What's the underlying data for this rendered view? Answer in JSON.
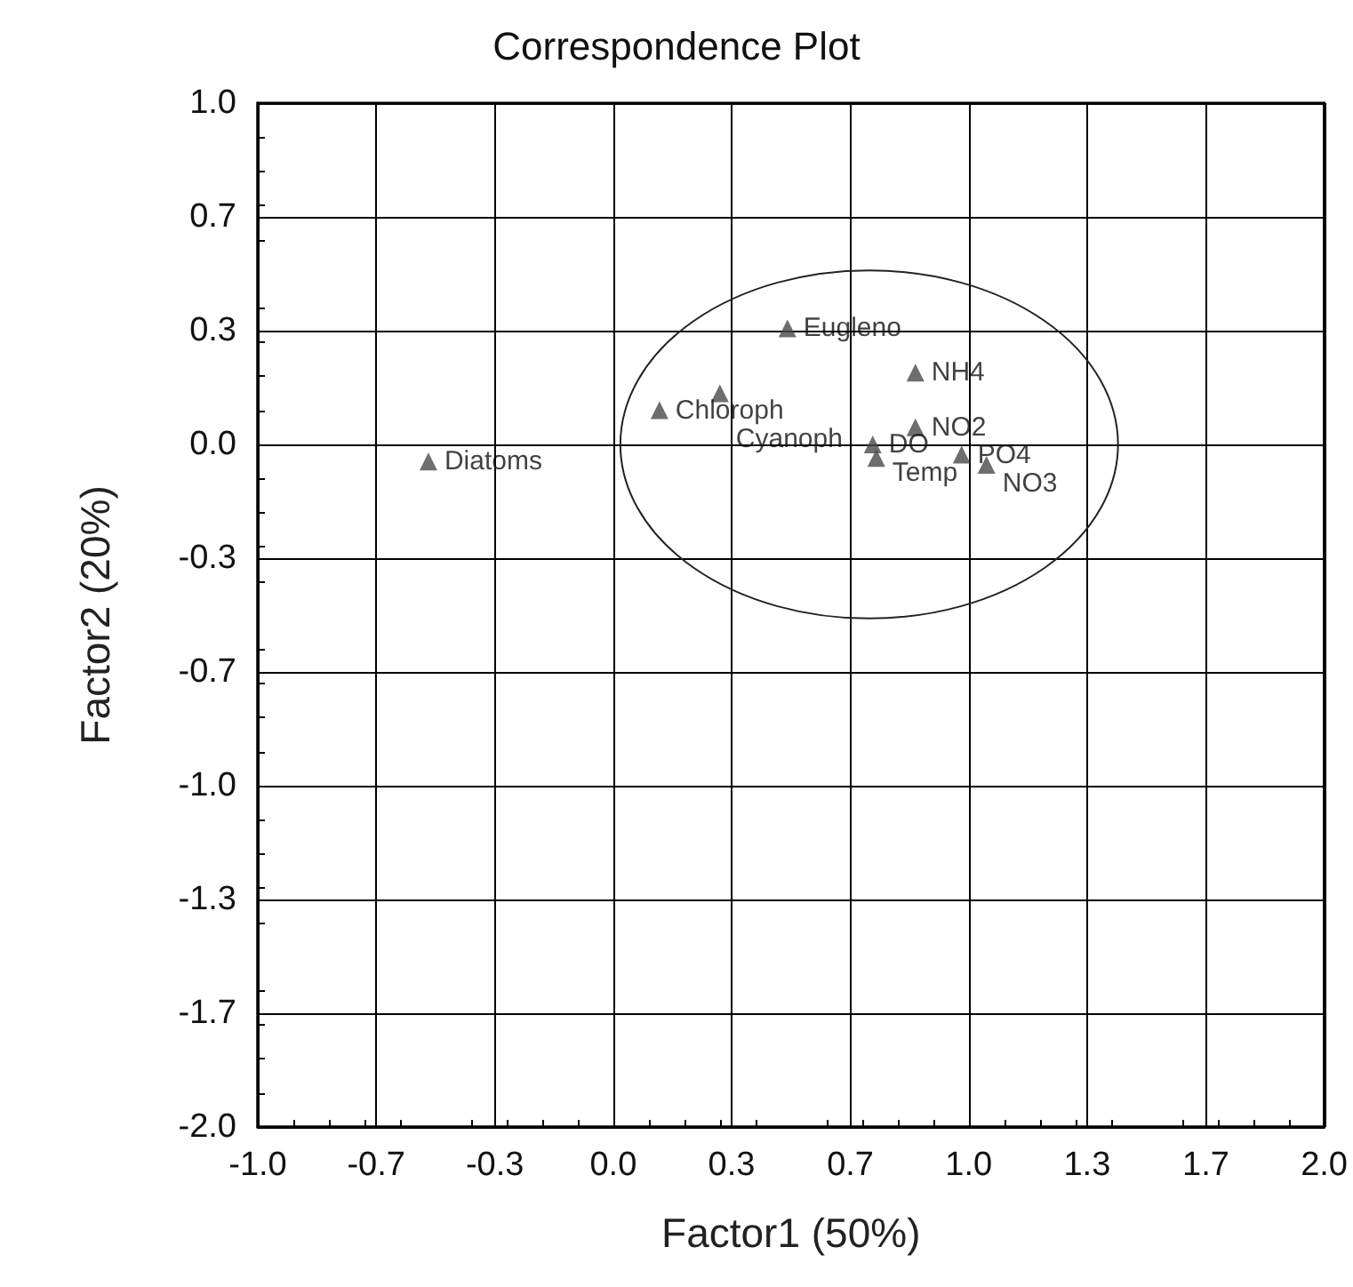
{
  "chart_data": {
    "type": "scatter",
    "title": "Correspondence Plot",
    "xlabel": "Factor1 (50%)",
    "ylabel": "Factor2 (20%)",
    "xlim": [
      -1.0,
      2.0
    ],
    "ylim": [
      -2.0,
      1.0
    ],
    "xticks": [
      {
        "value": -1,
        "label": "-1.0"
      },
      {
        "value": -0.667,
        "label": "-0.7"
      },
      {
        "value": -0.333,
        "label": "-0.3"
      },
      {
        "value": 0,
        "label": "0.0"
      },
      {
        "value": 0.333,
        "label": "0.3"
      },
      {
        "value": 0.667,
        "label": "0.7"
      },
      {
        "value": 1,
        "label": "1.0"
      },
      {
        "value": 1.333,
        "label": "1.3"
      },
      {
        "value": 1.667,
        "label": "1.7"
      },
      {
        "value": 2,
        "label": "2.0"
      }
    ],
    "yticks": [
      {
        "value": -2,
        "label": "-2.0"
      },
      {
        "value": -1.667,
        "label": "-1.7"
      },
      {
        "value": -1.333,
        "label": "-1.3"
      },
      {
        "value": -1,
        "label": "-1.0"
      },
      {
        "value": -0.667,
        "label": "-0.7"
      },
      {
        "value": -0.333,
        "label": "-0.3"
      },
      {
        "value": 0,
        "label": "0.0"
      },
      {
        "value": 0.333,
        "label": "0.3"
      },
      {
        "value": 0.667,
        "label": "0.7"
      },
      {
        "value": 1,
        "label": "1.0"
      }
    ],
    "grid": true,
    "legend": false,
    "marker": "triangle",
    "series": [
      {
        "name": "Diatoms",
        "color": "#4a4a4a",
        "x": [
          -0.52
        ],
        "values": [
          -0.05
        ]
      },
      {
        "name": "Chloroph",
        "color": "#4a4a4a",
        "x": [
          0.13
        ],
        "values": [
          0.1
        ]
      },
      {
        "name": "Cyanoph",
        "color": "#4a4a4a",
        "x": [
          0.3
        ],
        "values": [
          0.15
        ]
      },
      {
        "name": "Eugleno",
        "color": "#4a4a4a",
        "x": [
          0.49
        ],
        "values": [
          0.34
        ]
      },
      {
        "name": "NH4",
        "color": "#4a4a4a",
        "x": [
          0.85
        ],
        "values": [
          0.21
        ]
      },
      {
        "name": "NO2",
        "color": "#4a4a4a",
        "x": [
          0.85
        ],
        "values": [
          0.05
        ]
      },
      {
        "name": "DO",
        "color": "#4a4a4a",
        "x": [
          0.73
        ],
        "values": [
          0.0
        ]
      },
      {
        "name": "Temp",
        "color": "#4a4a4a",
        "x": [
          0.74
        ],
        "values": [
          -0.04
        ]
      },
      {
        "name": "PO4",
        "color": "#4a4a4a",
        "x": [
          0.98
        ],
        "values": [
          -0.03
        ]
      },
      {
        "name": "NO3",
        "color": "#4a4a4a",
        "x": [
          1.05
        ],
        "values": [
          -0.06
        ]
      }
    ]
  }
}
